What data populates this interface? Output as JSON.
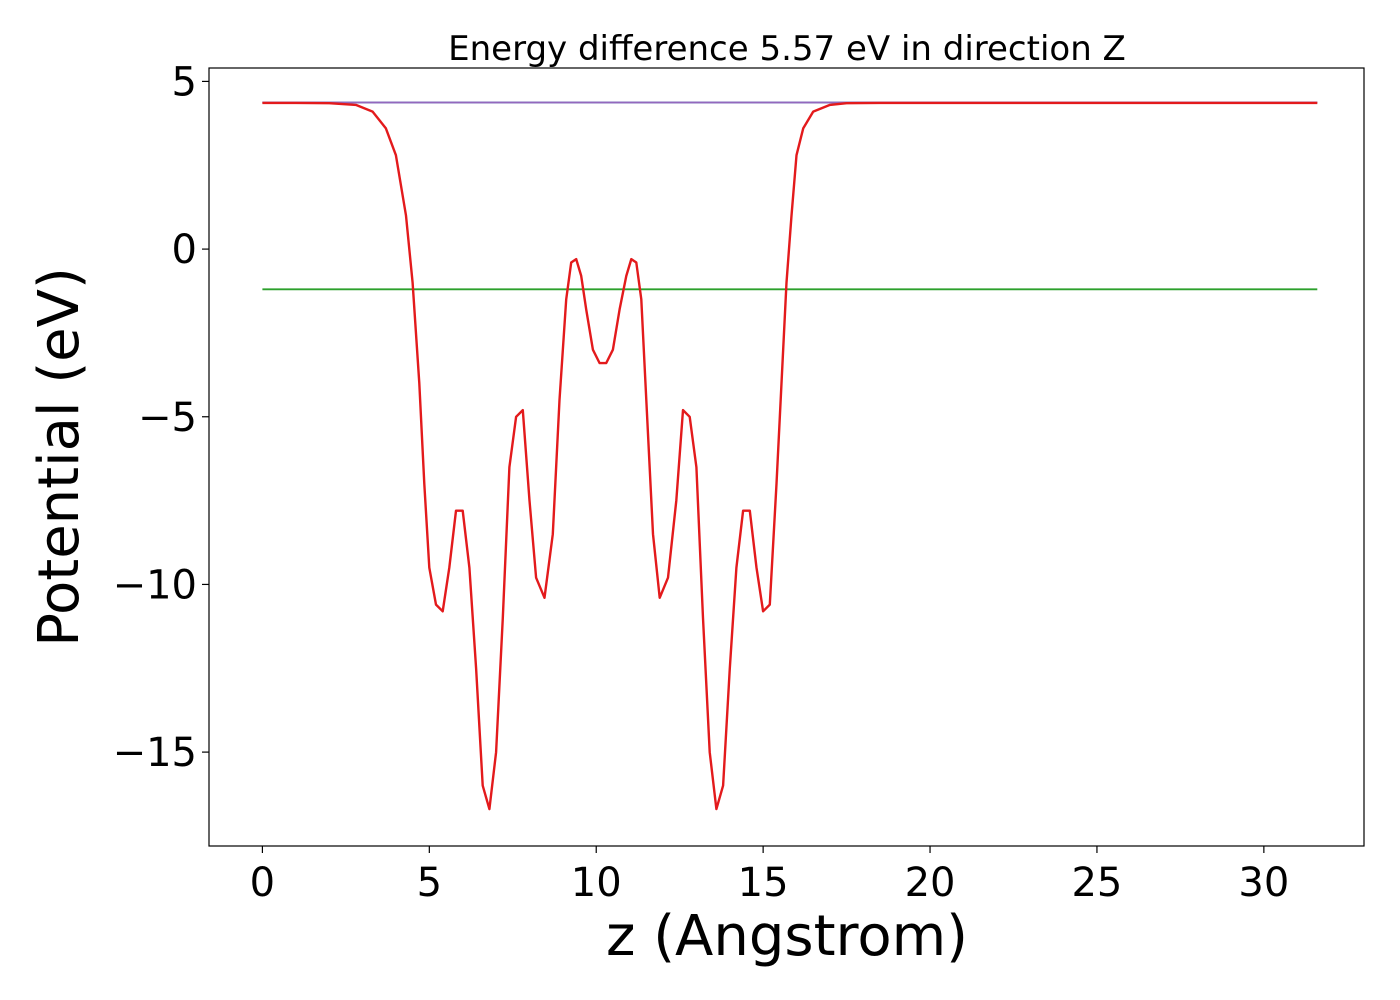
{
  "chart_data": {
    "type": "line",
    "title": "Energy difference 5.57 eV in direction Z",
    "xlabel": "z (Angstrom)",
    "ylabel": "Potential (eV)",
    "xlim": [
      -1.6,
      33.0
    ],
    "ylim": [
      -17.8,
      5.4
    ],
    "xticks": [
      0,
      5,
      10,
      15,
      20,
      25,
      30
    ],
    "xtick_labels": [
      "0",
      "5",
      "10",
      "15",
      "20",
      "25",
      "30"
    ],
    "yticks": [
      5,
      0,
      -5,
      -10,
      -15
    ],
    "ytick_labels": [
      "5",
      "0",
      "−5",
      "−10",
      "−15"
    ],
    "grid": false,
    "legend": "none",
    "series": [
      {
        "color": "#1f77b4",
        "x": [
          0,
          31.6
        ],
        "y": [
          4.37,
          4.37
        ]
      },
      {
        "color": "#2ca02c",
        "x": [
          0,
          31.6
        ],
        "y": [
          -1.2,
          -1.2
        ]
      },
      {
        "color": "#9467bd",
        "x": [
          0,
          31.6
        ],
        "y": [
          4.37,
          4.37
        ]
      },
      {
        "color": "#e31a1c",
        "x": [
          0,
          1.0,
          2.0,
          2.8,
          3.3,
          3.7,
          4.0,
          4.3,
          4.5,
          4.7,
          4.85,
          5.0,
          5.2,
          5.4,
          5.6,
          5.8,
          6.0,
          6.2,
          6.4,
          6.6,
          6.8,
          7.0,
          7.2,
          7.4,
          7.6,
          7.8,
          8.0,
          8.2,
          8.45,
          8.7,
          8.9,
          9.1,
          9.25,
          9.4,
          9.55,
          9.7,
          9.9,
          10.1,
          10.3,
          10.5,
          10.7,
          10.9,
          11.05,
          11.2,
          11.35,
          11.5,
          11.7,
          11.9,
          12.15,
          12.4,
          12.6,
          12.8,
          13.0,
          13.2,
          13.4,
          13.6,
          13.8,
          14.0,
          14.2,
          14.4,
          14.6,
          14.8,
          15.0,
          15.2,
          15.4,
          15.55,
          15.7,
          15.85,
          16.0,
          16.2,
          16.5,
          17.0,
          17.5,
          18.5,
          20.0,
          25.0,
          31.6
        ],
        "y": [
          4.36,
          4.36,
          4.35,
          4.3,
          4.1,
          3.6,
          2.8,
          1.0,
          -1.0,
          -4.0,
          -7.0,
          -9.5,
          -10.6,
          -10.8,
          -9.5,
          -7.8,
          -7.8,
          -9.5,
          -12.5,
          -16.0,
          -16.7,
          -15.0,
          -11.0,
          -6.5,
          -5.0,
          -4.8,
          -7.5,
          -9.8,
          -10.4,
          -8.5,
          -4.5,
          -1.5,
          -0.4,
          -0.3,
          -0.8,
          -1.8,
          -3.0,
          -3.4,
          -3.4,
          -3.0,
          -1.8,
          -0.8,
          -0.3,
          -0.4,
          -1.5,
          -4.5,
          -8.5,
          -10.4,
          -9.8,
          -7.5,
          -4.8,
          -5.0,
          -6.5,
          -11.0,
          -15.0,
          -16.7,
          -16.0,
          -12.5,
          -9.5,
          -7.8,
          -7.8,
          -9.5,
          -10.8,
          -10.6,
          -7.0,
          -4.0,
          -1.0,
          1.0,
          2.8,
          3.6,
          4.1,
          4.3,
          4.35,
          4.36,
          4.36,
          4.36,
          4.36
        ]
      }
    ]
  }
}
